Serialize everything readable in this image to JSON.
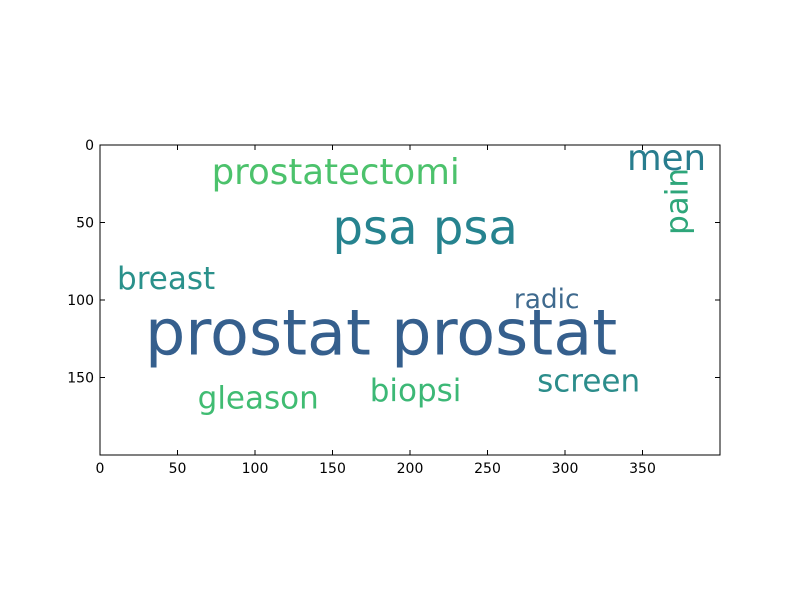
{
  "chart_data": {
    "type": "wordcloud",
    "x_ticks": [
      "0",
      "50",
      "100",
      "150",
      "200",
      "250",
      "300",
      "350"
    ],
    "y_ticks": [
      "0",
      "50",
      "100",
      "150"
    ],
    "xlim": [
      0,
      400
    ],
    "ylim": [
      200,
      0
    ],
    "grid": false,
    "words": [
      {
        "text": "prostat prostat",
        "x": 29,
        "y": 135,
        "size": 41,
        "rotate": 0,
        "color": "#355f8d"
      },
      {
        "text": "psa psa",
        "x": 150,
        "y": 64,
        "size": 31,
        "rotate": 0,
        "color": "#26838f"
      },
      {
        "text": "prostatectomi",
        "x": 72,
        "y": 25,
        "size": 23,
        "rotate": 0,
        "color": "#4cc26c"
      },
      {
        "text": "men",
        "x": 340,
        "y": 16,
        "size": 23,
        "rotate": 0,
        "color": "#287d8e"
      },
      {
        "text": "pain",
        "x": 379,
        "y": 58,
        "size": 20,
        "rotate": -90,
        "color": "#2ea67a"
      },
      {
        "text": "breast",
        "x": 11,
        "y": 93,
        "size": 20,
        "rotate": 0,
        "color": "#2a918b"
      },
      {
        "text": "radic",
        "x": 267,
        "y": 105,
        "size": 17,
        "rotate": 0,
        "color": "#3f6a8e"
      },
      {
        "text": "screen",
        "x": 282,
        "y": 159,
        "size": 20,
        "rotate": 0,
        "color": "#2c8d8b"
      },
      {
        "text": "biopsi",
        "x": 174,
        "y": 165,
        "size": 20,
        "rotate": 0,
        "color": "#3cb876"
      },
      {
        "text": "gleason",
        "x": 63,
        "y": 170,
        "size": 20,
        "rotate": 0,
        "color": "#40bc72"
      }
    ]
  }
}
